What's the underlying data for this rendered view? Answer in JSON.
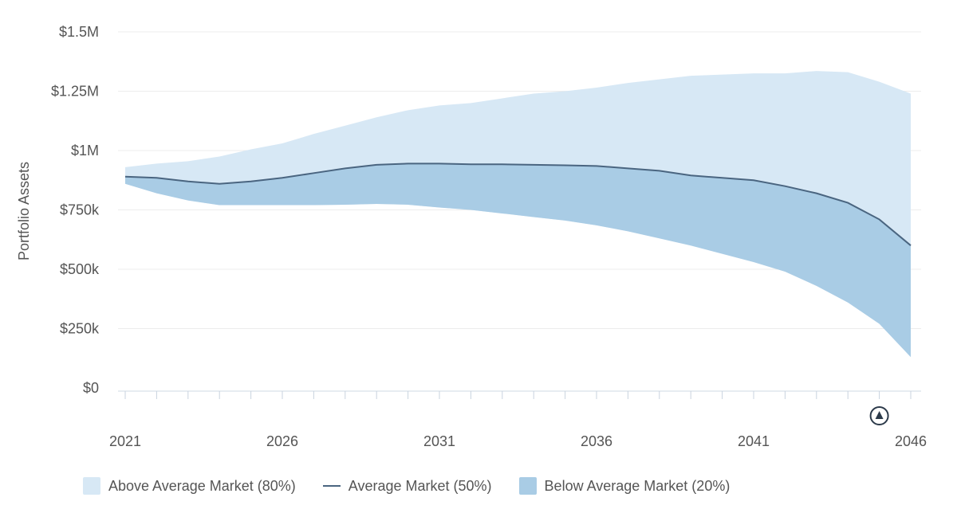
{
  "chart_data": {
    "type": "area",
    "title": "",
    "xlabel": "",
    "ylabel": "Portfolio Assets",
    "x": [
      2021,
      2022,
      2023,
      2024,
      2025,
      2026,
      2027,
      2028,
      2029,
      2030,
      2031,
      2032,
      2033,
      2034,
      2035,
      2036,
      2037,
      2038,
      2039,
      2040,
      2041,
      2042,
      2043,
      2044,
      2045,
      2046
    ],
    "ylim": [
      0,
      1500000
    ],
    "y_ticks": [
      0,
      250000,
      500000,
      750000,
      1000000,
      1250000,
      1500000
    ],
    "y_tick_labels": [
      "$0",
      "$250k",
      "$500k",
      "$750k",
      "$1M",
      "$1.25M",
      "$1.5M"
    ],
    "x_ticks": [
      2021,
      2026,
      2031,
      2036,
      2041,
      2046
    ],
    "x_tick_labels": [
      "2021",
      "2026",
      "2031",
      "2036",
      "2041",
      "2046"
    ],
    "grid": true,
    "legend_position": "bottom-left",
    "series": [
      {
        "name": "Above Average Market (80%)",
        "kind": "area",
        "color": "#d7e8f5",
        "values": [
          930000,
          945000,
          955000,
          975000,
          1005000,
          1030000,
          1070000,
          1105000,
          1140000,
          1170000,
          1190000,
          1200000,
          1220000,
          1240000,
          1250000,
          1265000,
          1285000,
          1300000,
          1315000,
          1320000,
          1325000,
          1325000,
          1335000,
          1330000,
          1290000,
          1240000
        ]
      },
      {
        "name": "Average Market (50%)",
        "kind": "line",
        "color": "#4a6580",
        "values": [
          890000,
          885000,
          870000,
          860000,
          870000,
          885000,
          905000,
          925000,
          940000,
          945000,
          945000,
          942000,
          942000,
          940000,
          938000,
          935000,
          925000,
          915000,
          895000,
          885000,
          875000,
          850000,
          820000,
          780000,
          710000,
          600000
        ]
      },
      {
        "name": "Below Average Market (20%)",
        "kind": "area",
        "color": "#a9cce5",
        "values": [
          860000,
          820000,
          790000,
          770000,
          770000,
          770000,
          770000,
          772000,
          775000,
          772000,
          760000,
          750000,
          735000,
          720000,
          705000,
          685000,
          660000,
          630000,
          600000,
          565000,
          530000,
          490000,
          430000,
          360000,
          270000,
          130000
        ]
      }
    ]
  },
  "marker": {
    "icon": "up-arrow-circle-icon",
    "year": 2045
  }
}
